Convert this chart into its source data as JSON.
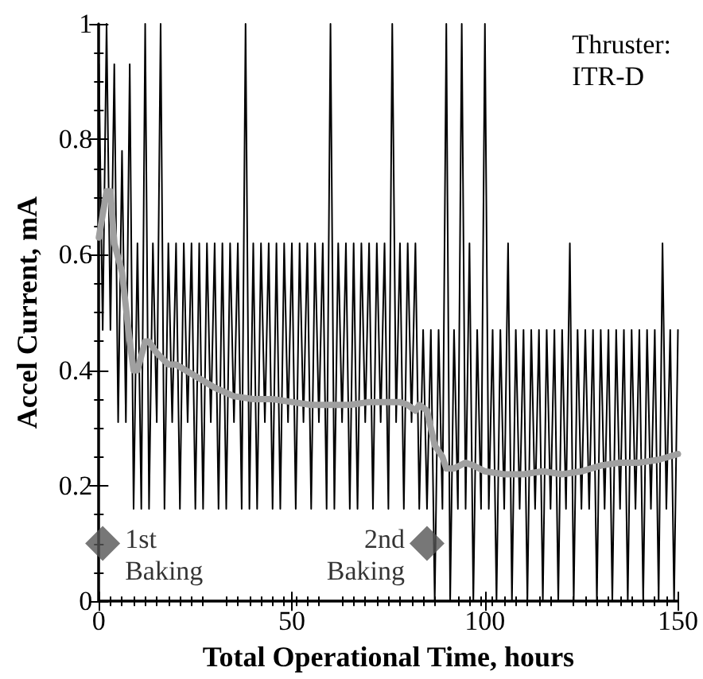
{
  "chart_data": {
    "type": "line",
    "xlabel": "Total Operational Time, hours",
    "ylabel": "Accel Current, mA",
    "xlim": [
      0,
      150
    ],
    "xticks": [
      0,
      50,
      100,
      150
    ],
    "ylim": [
      0,
      1
    ],
    "yticks": [
      0,
      0.2,
      0.4,
      0.6,
      0.8,
      1
    ],
    "grid": false,
    "annotations": [
      "Thruster:\nITR-D",
      {
        "text": "1st\nBaking",
        "x": 1,
        "y": 0.08
      },
      {
        "text": "2nd\nBaking",
        "x": 85,
        "y": 0.08
      }
    ],
    "series": [
      {
        "color": "#000000",
        "marker": "none",
        "x": [
          0,
          1,
          2,
          3,
          4,
          5,
          6,
          7,
          8,
          9,
          10,
          11,
          12,
          13,
          14,
          15,
          16,
          17,
          18,
          19,
          20,
          21,
          22,
          23,
          24,
          25,
          26,
          27,
          28,
          29,
          30,
          31,
          32,
          33,
          34,
          35,
          36,
          37,
          38,
          39,
          40,
          41,
          42,
          43,
          44,
          45,
          46,
          47,
          48,
          49,
          50,
          51,
          52,
          53,
          54,
          55,
          56,
          57,
          58,
          59,
          60,
          61,
          62,
          63,
          64,
          65,
          66,
          67,
          68,
          69,
          70,
          71,
          72,
          73,
          74,
          75,
          76,
          77,
          78,
          79,
          80,
          81,
          82,
          83,
          84,
          85,
          86,
          87,
          88,
          89,
          90,
          91,
          92,
          93,
          94,
          95,
          96,
          97,
          98,
          99,
          100,
          101,
          102,
          103,
          104,
          105,
          106,
          107,
          108,
          109,
          110,
          111,
          112,
          113,
          114,
          115,
          116,
          117,
          118,
          119,
          120,
          121,
          122,
          123,
          124,
          125,
          126,
          127,
          128,
          129,
          130,
          131,
          132,
          133,
          134,
          135,
          136,
          137,
          138,
          139,
          140,
          141,
          142,
          143,
          144,
          145,
          146,
          147,
          148,
          149,
          150
        ],
        "values": [
          0.93,
          0.47,
          1.0,
          0.47,
          0.93,
          0.31,
          0.78,
          0.31,
          0.93,
          0.16,
          0.62,
          0.16,
          1.0,
          0.16,
          0.62,
          0.31,
          1.0,
          0.16,
          0.62,
          0.31,
          0.62,
          0.16,
          0.62,
          0.31,
          0.62,
          0.16,
          0.62,
          0.16,
          0.62,
          0.31,
          0.62,
          0.16,
          0.62,
          0.16,
          0.62,
          0.31,
          0.62,
          0.16,
          1.0,
          0.16,
          0.62,
          0.16,
          0.62,
          0.31,
          0.62,
          0.16,
          0.62,
          0.16,
          0.62,
          0.31,
          0.62,
          0.16,
          0.62,
          0.31,
          0.62,
          0.16,
          0.62,
          0.31,
          0.62,
          0.16,
          1.0,
          0.16,
          0.62,
          0.31,
          0.62,
          0.16,
          0.62,
          0.16,
          0.62,
          0.31,
          0.62,
          0.16,
          0.62,
          0.31,
          0.62,
          0.16,
          1.0,
          0.31,
          0.62,
          0.16,
          0.62,
          0.31,
          0.62,
          0.16,
          0.47,
          0.16,
          0.47,
          0,
          0.47,
          0.16,
          1.0,
          0,
          0.47,
          0.16,
          1.0,
          0.16,
          0.62,
          0,
          0.47,
          0.16,
          1.0,
          0.16,
          0.47,
          0,
          0.47,
          0.16,
          0.62,
          0,
          0.47,
          0.16,
          0.47,
          0,
          0.47,
          0.16,
          0.47,
          0,
          0.47,
          0.16,
          0.47,
          0,
          0.47,
          0.16,
          0.62,
          0,
          0.47,
          0.16,
          0.47,
          0.16,
          0.47,
          0,
          0.47,
          0.16,
          0.47,
          0,
          0.47,
          0.16,
          0.47,
          0,
          0.47,
          0.16,
          0.47,
          0,
          0.47,
          0.16,
          0.47,
          0,
          0.62,
          0.16,
          0.47,
          0,
          0.47
        ]
      },
      {
        "color": "#a0a0a0",
        "marker": "none",
        "x": [
          0,
          2,
          3,
          4,
          6,
          8,
          9,
          10,
          12,
          13,
          15,
          18,
          20,
          25,
          30,
          35,
          40,
          45,
          50,
          55,
          60,
          65,
          70,
          75,
          78,
          80,
          82,
          83,
          85,
          86,
          87,
          89,
          90,
          92,
          95,
          97,
          100,
          105,
          110,
          115,
          120,
          125,
          130,
          135,
          140,
          145,
          150
        ],
        "values": [
          0.63,
          0.71,
          0.71,
          0.62,
          0.57,
          0.45,
          0.4,
          0.4,
          0.45,
          0.45,
          0.43,
          0.41,
          0.41,
          0.39,
          0.37,
          0.355,
          0.35,
          0.35,
          0.345,
          0.34,
          0.34,
          0.34,
          0.345,
          0.345,
          0.345,
          0.34,
          0.33,
          0.34,
          0.33,
          0.3,
          0.27,
          0.25,
          0.23,
          0.23,
          0.24,
          0.235,
          0.225,
          0.22,
          0.22,
          0.225,
          0.22,
          0.225,
          0.235,
          0.24,
          0.24,
          0.245,
          0.255
        ]
      },
      {
        "type": "scatter",
        "color": "#555555",
        "marker": "diamond",
        "x": [
          1,
          85
        ],
        "values": [
          0.1,
          0.1
        ]
      }
    ]
  }
}
